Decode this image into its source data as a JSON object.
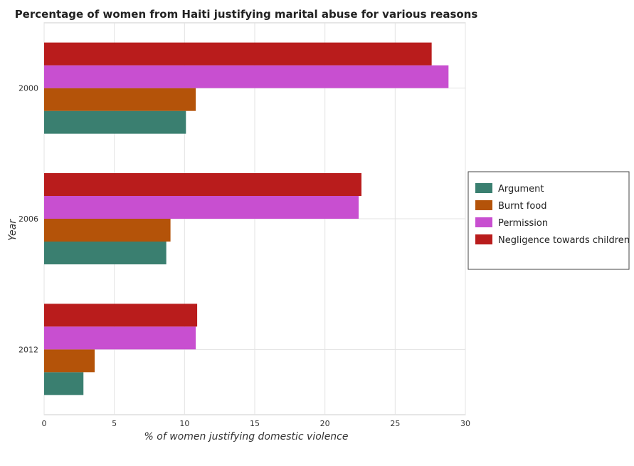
{
  "chart_data": {
    "type": "bar",
    "orientation": "horizontal",
    "title": "Percentage of women from Haiti justifying marital abuse for various reasons",
    "xlabel": "% of women justifying domestic violence",
    "ylabel": "Year",
    "categories": [
      "2000",
      "2006",
      "2012"
    ],
    "xlim": [
      0,
      30
    ],
    "xticks": [
      0,
      5,
      10,
      15,
      20,
      25,
      30
    ],
    "grid": true,
    "legend_position": "right",
    "series": [
      {
        "name": "Argument",
        "color": "#3a7f70",
        "values": [
          10.1,
          8.7,
          2.8
        ]
      },
      {
        "name": "Burnt food",
        "color": "#b45309",
        "values": [
          10.8,
          9.0,
          3.6
        ]
      },
      {
        "name": "Permission",
        "color": "#c84fd0",
        "values": [
          28.8,
          22.4,
          10.8
        ]
      },
      {
        "name": "Negligence towards children",
        "color": "#b91c1c",
        "values": [
          27.6,
          22.6,
          10.9
        ]
      }
    ]
  }
}
